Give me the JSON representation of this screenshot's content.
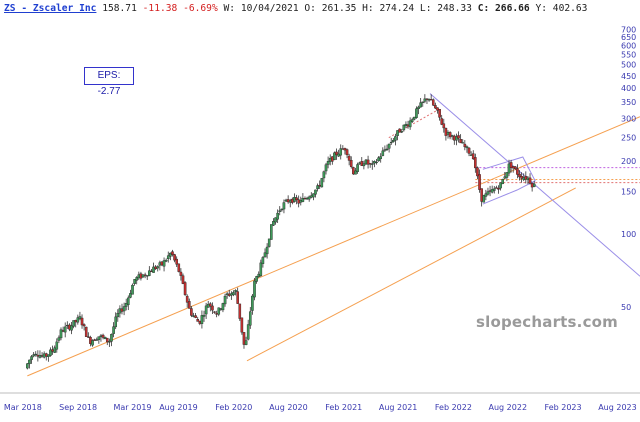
{
  "header": {
    "symbol": "ZS - Zscaler Inc",
    "last": "158.71",
    "change": "-11.38",
    "change_pct": "-6.69%",
    "w_label": "W: 10/04/2021",
    "o_label": "O: 261.35",
    "h_label": "H: 274.24",
    "l_label": "L: 248.33",
    "c_prefix": "C:",
    "c_value": "266.66",
    "y_label": "Y: 402.63"
  },
  "eps_box": "EPS:  -2.77",
  "watermark": "slopecharts.com",
  "colors": {
    "up_candle": "#3f9a5a",
    "down_candle": "#c23030",
    "wick": "#333333",
    "trend_orange": "#f5a050",
    "trend_purple": "#9b8fe8",
    "dotted_magenta": "#c060e0",
    "dotted_red": "#e07070",
    "axis_text": "#3a3ab0"
  },
  "chart_data": {
    "type": "candlestick",
    "title": "ZS - Zscaler Inc",
    "y_scale": "log",
    "ylim": [
      25,
      750
    ],
    "xlim": [
      "2017-12-15",
      "2023-10-15"
    ],
    "y_ticks": [
      50,
      100,
      150,
      200,
      250,
      300,
      350,
      400,
      450,
      500,
      550,
      600,
      650,
      700
    ],
    "x_ticks": [
      {
        "date": "2018-03-01",
        "label": "Mar 2018"
      },
      {
        "date": "2018-09-01",
        "label": "Sep 2018"
      },
      {
        "date": "2019-03-01",
        "label": "Mar 2019"
      },
      {
        "date": "2019-08-01",
        "label": "Aug 2019"
      },
      {
        "date": "2020-02-01",
        "label": "Feb 2020"
      },
      {
        "date": "2020-08-01",
        "label": "Aug 2020"
      },
      {
        "date": "2021-02-01",
        "label": "Feb 2021"
      },
      {
        "date": "2021-08-01",
        "label": "Aug 2021"
      },
      {
        "date": "2022-02-01",
        "label": "Feb 2022"
      },
      {
        "date": "2022-08-01",
        "label": "Aug 2022"
      },
      {
        "date": "2023-02-01",
        "label": "Feb 2023"
      },
      {
        "date": "2023-08-01",
        "label": "Aug 2023"
      }
    ],
    "price_path": [
      [
        "2018-03-16",
        28
      ],
      [
        "2018-04-15",
        33
      ],
      [
        "2018-05-15",
        31
      ],
      [
        "2018-06-15",
        33
      ],
      [
        "2018-07-15",
        40
      ],
      [
        "2018-08-15",
        42
      ],
      [
        "2018-09-15",
        45
      ],
      [
        "2018-10-15",
        36
      ],
      [
        "2018-11-15",
        38
      ],
      [
        "2018-12-20",
        36
      ],
      [
        "2019-01-15",
        46
      ],
      [
        "2019-02-15",
        52
      ],
      [
        "2019-03-15",
        65
      ],
      [
        "2019-04-15",
        68
      ],
      [
        "2019-05-15",
        72
      ],
      [
        "2019-06-15",
        75
      ],
      [
        "2019-07-15",
        84
      ],
      [
        "2019-08-10",
        70
      ],
      [
        "2019-09-15",
        48
      ],
      [
        "2019-10-15",
        43
      ],
      [
        "2019-11-15",
        52
      ],
      [
        "2019-12-15",
        47
      ],
      [
        "2020-01-15",
        56
      ],
      [
        "2020-02-15",
        58
      ],
      [
        "2020-03-16",
        33
      ],
      [
        "2020-04-15",
        62
      ],
      [
        "2020-05-15",
        78
      ],
      [
        "2020-06-15",
        110
      ],
      [
        "2020-07-15",
        130
      ],
      [
        "2020-08-15",
        140
      ],
      [
        "2020-09-15",
        135
      ],
      [
        "2020-10-15",
        145
      ],
      [
        "2020-11-15",
        155
      ],
      [
        "2020-12-15",
        195
      ],
      [
        "2021-01-15",
        215
      ],
      [
        "2021-02-15",
        228
      ],
      [
        "2021-03-10",
        180
      ],
      [
        "2021-04-15",
        200
      ],
      [
        "2021-05-15",
        190
      ],
      [
        "2021-06-15",
        215
      ],
      [
        "2021-07-15",
        240
      ],
      [
        "2021-08-15",
        270
      ],
      [
        "2021-09-15",
        290
      ],
      [
        "2021-10-15",
        330
      ],
      [
        "2021-11-15",
        370
      ],
      [
        "2021-12-15",
        320
      ],
      [
        "2022-01-15",
        260
      ],
      [
        "2022-02-15",
        250
      ],
      [
        "2022-03-15",
        230
      ],
      [
        "2022-04-15",
        210
      ],
      [
        "2022-05-12",
        140
      ],
      [
        "2022-06-15",
        150
      ],
      [
        "2022-07-15",
        160
      ],
      [
        "2022-08-15",
        195
      ],
      [
        "2022-09-15",
        175
      ],
      [
        "2022-10-15",
        170
      ],
      [
        "2022-10-31",
        159
      ]
    ],
    "trendlines": [
      {
        "name": "lower channel upper",
        "start": [
          "2018-03-16",
          26
        ],
        "end": [
          "2023-10-15",
          305
        ]
      },
      {
        "name": "lower channel lower",
        "start": [
          "2020-03-16",
          30
        ],
        "end": [
          "2023-03-15",
          155
        ]
      },
      {
        "name": "descending resistance",
        "start": [
          "2021-11-15",
          380
        ],
        "end": [
          "2023-10-15",
          67
        ]
      }
    ],
    "horizontal_levels": [
      188,
      168,
      163
    ]
  }
}
